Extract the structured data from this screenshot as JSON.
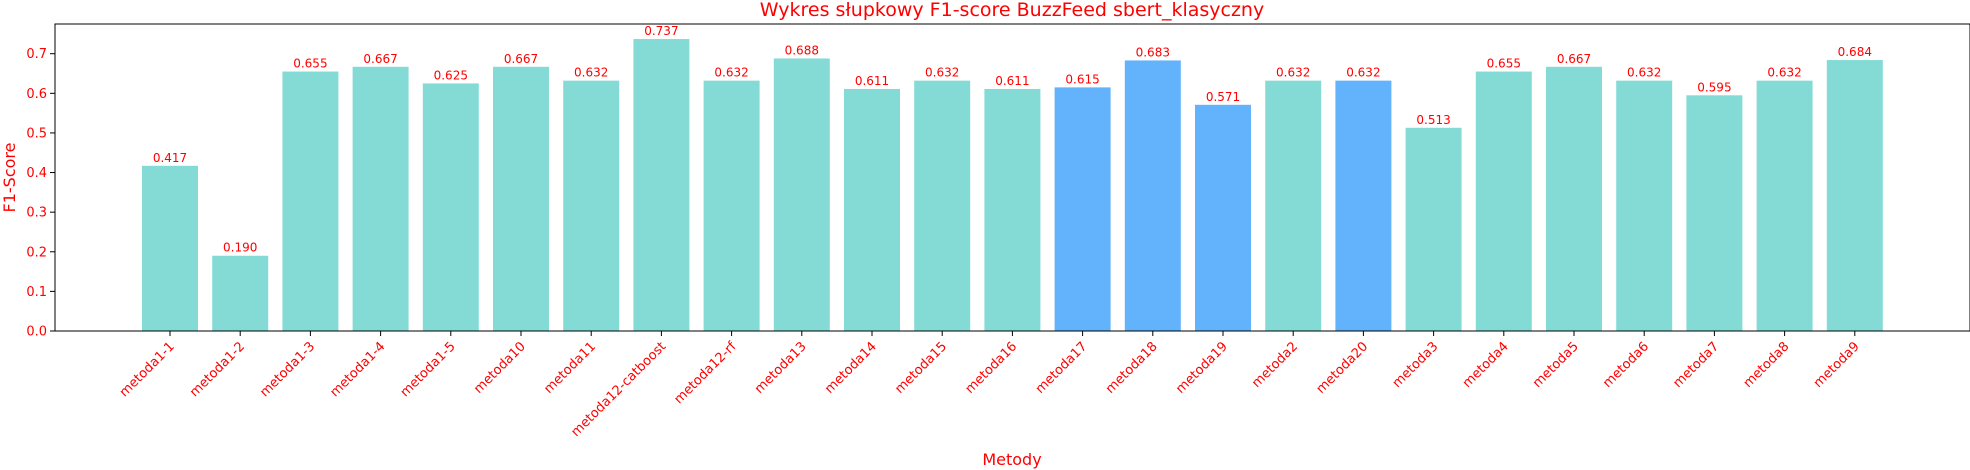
{
  "chart_data": {
    "type": "bar",
    "title": "Wykres słupkowy F1-score BuzzFeed sbert_klasyczny",
    "xlabel": "Metody",
    "ylabel": "F1-Score",
    "ylim": [
      0,
      0.775
    ],
    "yticks": [
      "0.0",
      "0.1",
      "0.2",
      "0.3",
      "0.4",
      "0.5",
      "0.6",
      "0.7"
    ],
    "label_color": "#ff0000",
    "default_bar_color": "#84dbd6",
    "highlight_bar_color": "#62b3fb",
    "categories": [
      "metoda1-1",
      "metoda1-2",
      "metoda1-3",
      "metoda1-4",
      "metoda1-5",
      "metoda10",
      "metoda11",
      "metoda12-catboost",
      "metoda12-rf",
      "metoda13",
      "metoda14",
      "metoda15",
      "metoda16",
      "metoda17",
      "metoda18",
      "metoda19",
      "metoda2",
      "metoda20",
      "metoda3",
      "metoda4",
      "metoda5",
      "metoda6",
      "metoda7",
      "metoda8",
      "metoda9"
    ],
    "values": [
      0.417,
      0.19,
      0.655,
      0.667,
      0.625,
      0.667,
      0.632,
      0.737,
      0.632,
      0.688,
      0.611,
      0.632,
      0.611,
      0.615,
      0.683,
      0.571,
      0.632,
      0.632,
      0.513,
      0.655,
      0.667,
      0.632,
      0.595,
      0.632,
      0.684
    ],
    "value_labels": [
      "0.417",
      "0.190",
      "0.655",
      "0.667",
      "0.625",
      "0.667",
      "0.632",
      "0.737",
      "0.632",
      "0.688",
      "0.611",
      "0.632",
      "0.611",
      "0.615",
      "0.683",
      "0.571",
      "0.632",
      "0.632",
      "0.513",
      "0.655",
      "0.667",
      "0.632",
      "0.595",
      "0.632",
      "0.684"
    ],
    "highlighted": [
      "metoda17",
      "metoda18",
      "metoda19",
      "metoda20"
    ]
  }
}
